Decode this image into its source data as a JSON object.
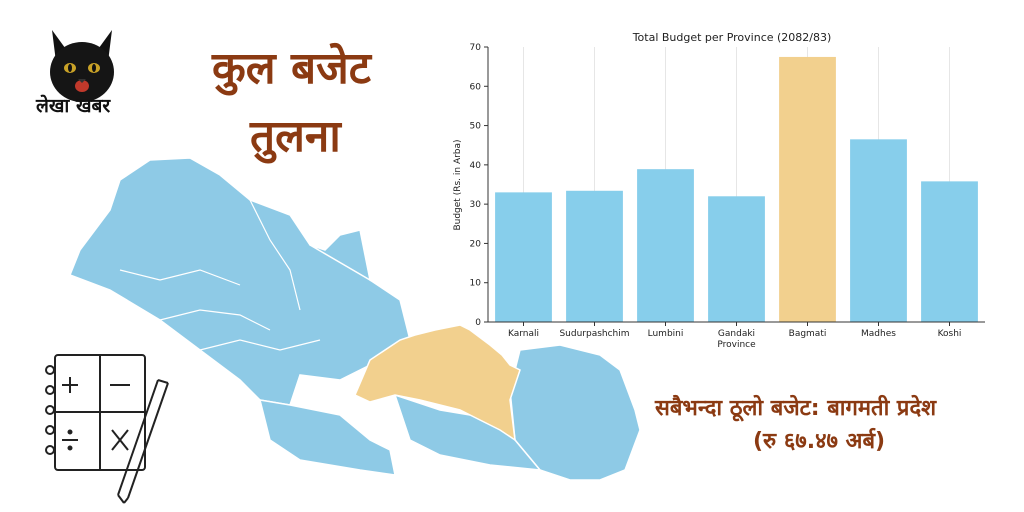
{
  "logo": {
    "text": "लेखा खबर",
    "icon": "black-cat-icon"
  },
  "headline": {
    "line1": "कुल बजेट",
    "line2": "तुलना"
  },
  "callout": {
    "line1": "सबैभन्दा ठूलो बजेट: बागमती प्रदेश",
    "line2": "(रु ६७.४७ अर्ब)"
  },
  "colors": {
    "bar": "#87ceeb",
    "highlight": "#f2d08e",
    "map_blue": "#8ecae6",
    "map_highlight": "#f2d08e",
    "text_brown": "#8b3a12"
  },
  "chart_data": {
    "type": "bar",
    "title": "Total Budget per Province (2082/83)",
    "ylabel": "Budget (Rs. in Arba)",
    "xlabel": "",
    "categories": [
      "Karnali",
      "Sudurpashchim",
      "Lumbini",
      "Gandaki Province",
      "Bagmati",
      "Madhes",
      "Koshi"
    ],
    "values": [
      33.0,
      33.4,
      38.9,
      32.0,
      67.47,
      46.5,
      35.8
    ],
    "highlight_index": 4,
    "ylim": [
      0,
      70
    ],
    "yticks": [
      0,
      10,
      20,
      30,
      40,
      50,
      60,
      70
    ],
    "grid": "vertical"
  }
}
